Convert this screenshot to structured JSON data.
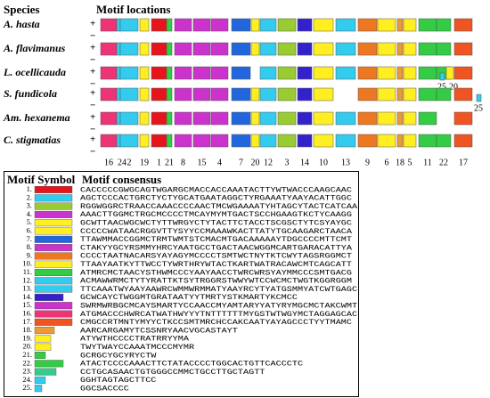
{
  "header": {
    "species": "Species",
    "motif_locations": "Motif locations"
  },
  "strands": [
    "+",
    "−"
  ],
  "species": [
    {
      "name": "A. hasta"
    },
    {
      "name": "A. flavimanus"
    },
    {
      "name": "L. ocellicauda",
      "extra_motifs": [
        25,
        20
      ]
    },
    {
      "name": "S. fundicola",
      "extra_motifs": [
        25
      ]
    },
    {
      "name": "Am. hexanema"
    },
    {
      "name": "C. stigmatias"
    }
  ],
  "axis_motifs": [
    16,
    24,
    2,
    19,
    1,
    21,
    8,
    15,
    4,
    7,
    20,
    12,
    3,
    14,
    10,
    13,
    9,
    6,
    18,
    5,
    11,
    22,
    17
  ],
  "legend": {
    "symbol_header": "Motif Symbol",
    "consensus_header": "Motif consensus",
    "motifs": [
      {
        "label": "1.",
        "color": "#e8141c",
        "consensus": "CACCCCCGWGCAGTWGARGCMACCACCAAATACTTYWTWACCCAAGCAAC"
      },
      {
        "label": "2.",
        "color": "#33ccee",
        "consensus": "AGCTCCCACTGRCTYCTYGCATGAATAGGCTYRGAAATYAAYACATTGGC"
      },
      {
        "label": "3.",
        "color": "#99cc33",
        "consensus": "RGGWGGRCTRAACCAAACCCCAACTMCWGAAAATYHTAGCYTACTCATCAA"
      },
      {
        "label": "4.",
        "color": "#cc33cc",
        "consensus": "AAACTTGGMCTRGCMCCCCTMCAYMYMTGACTSCCHGAAGTKCTYCAAGG"
      },
      {
        "label": "5.",
        "color": "#ffee22",
        "consensus": "GCWTTAACWGCWCTYTTWRGYCTYTACTTCTACCTSCGSCTYTCSYAYGC"
      },
      {
        "label": "6.",
        "color": "#ffee22",
        "consensus": "CCCCCWATAACRGGVTTYSYYCCMAAAWKACTTATYTGCAAGARCTAACA"
      },
      {
        "label": "7.",
        "color": "#2266dd",
        "consensus": "TTAWMMACCGGMCTRMTWMTSTCMACMTGACAAAAAYTDGCCCCMTTCMT"
      },
      {
        "label": "8.",
        "color": "#cc33cc",
        "consensus": "CTAKYYGCYRSMMYHRCYAATGCCTGACTAACWGGMCARTGARACATTYA"
      },
      {
        "label": "9.",
        "color": "#ee7722",
        "consensus": "CCCCTAATNACARSYAYAGYMCCCCTSMTWCTNYTKTCWYTAGSRGGMCT"
      },
      {
        "label": "10.",
        "color": "#ffee22",
        "consensus": "TTAAYAATKYTTWCCTYWRTHRYWTACTKARTWATRACAWCMTCAGCATT"
      },
      {
        "label": "11.",
        "color": "#33cc44",
        "consensus": "ATMRCMCTAACYSTHWMCCCYAAYAACCTWRCWRSYAYMMCCCSMTGACG"
      },
      {
        "label": "12.",
        "color": "#33ccee",
        "consensus": "ACMAWWRMCTYTYRATTKTSYTRGGRSTWWYWTCCWCMCTWGTKGGRGGM"
      },
      {
        "label": "13.",
        "color": "#33ccee",
        "consensus": "TTCAAATWYAAYAAWRCWMMWRMMATYAAYRCYTYATGSMMYATCWTGAGC"
      },
      {
        "label": "14.",
        "color": "#3322cc",
        "consensus": "GCWCAYCTWGGMTGRATAATYYTMRTYSTKMARTYKCMCC"
      },
      {
        "label": "15.",
        "color": "#cc33cc",
        "consensus": "SWRMWRBGCMCAYSMARTYCCAACCMYAMTARYYATYRYMGCMCTAKCWMT"
      },
      {
        "label": "16.",
        "color": "#ee3377",
        "consensus": "ATGMACCCHWRCATWATHWYYYTNTTTTTTMYGSTWTWGYMCTAGGAGCAC"
      },
      {
        "label": "17.",
        "color": "#ee5522",
        "consensus": "CMGCCRTMNTYMYYCTKCCSMTMRCHCCAKCAATYAYAGCCCTYYTMAMC"
      },
      {
        "label": "18.",
        "color": "#ee9933",
        "consensus": "AARCARGAMYTCSSNRYAACVGCASTAYT"
      },
      {
        "label": "19.",
        "color": "#ffee22",
        "consensus": "ATYWTHCCCCTRATRRYYMA"
      },
      {
        "label": "20.",
        "color": "#ffee22",
        "consensus": "TWYTWAYCCAAATMCCCMYMR"
      },
      {
        "label": "21.",
        "color": "#33cc44",
        "consensus": "GCRGCYGCYRYCTW"
      },
      {
        "label": "22.",
        "color": "#33cc44",
        "consensus": "ATACTCCCCAAACTTCTATACCCCTGGCACTGTTCACCCTC"
      },
      {
        "label": "23.",
        "color": "#33cc88",
        "consensus": "CCTGCASAACTGTGGGCCMMCTGCCTTGCTAGTT"
      },
      {
        "label": "24.",
        "color": "#33ccee",
        "consensus": "GGHTAGTAGCTTCC"
      },
      {
        "label": "25.",
        "color": "#33ccee",
        "consensus": "GGCSACCCC"
      }
    ]
  }
}
